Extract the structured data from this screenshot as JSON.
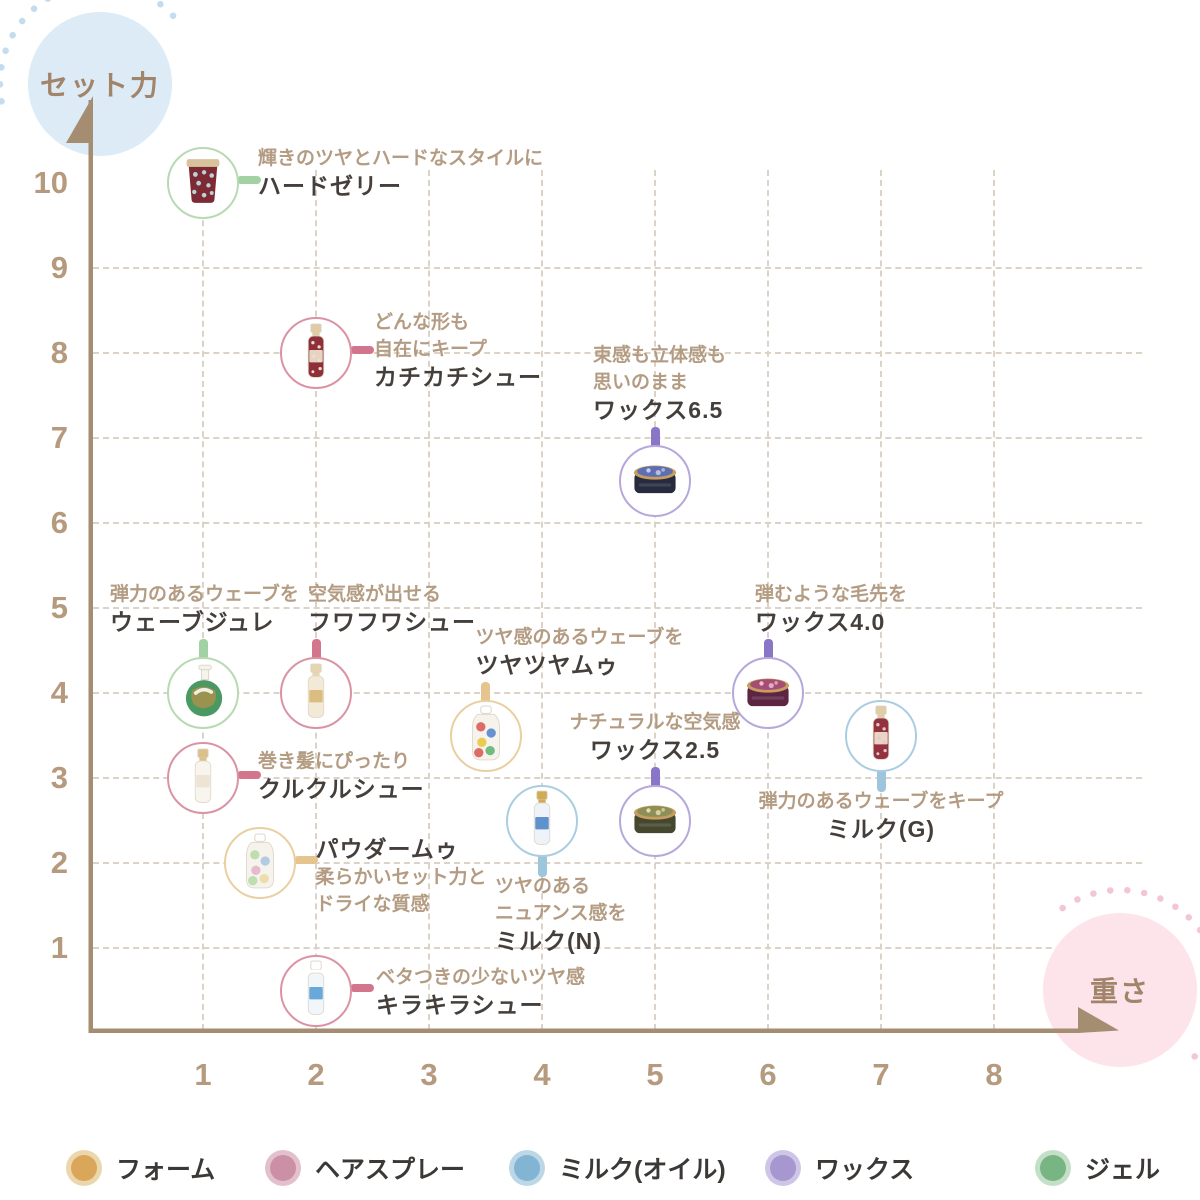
{
  "axes": {
    "y_axis_label": "セット力",
    "x_axis_label": "重さ"
  },
  "chart_data": {
    "type": "scatter",
    "title": "",
    "xlabel": "重さ",
    "ylabel": "セット力",
    "xlim": [
      0,
      8.7
    ],
    "ylim": [
      0,
      10.9
    ],
    "x_ticks": [
      "1",
      "2",
      "3",
      "4",
      "5",
      "6",
      "7",
      "8"
    ],
    "y_ticks": [
      "1",
      "2",
      "3",
      "4",
      "5",
      "6",
      "7",
      "8",
      "9",
      "10"
    ],
    "grid": true,
    "legend_position": "bottom",
    "series": [
      {
        "name": "フォーム",
        "key": "foam",
        "color": "#d9a65a",
        "ring": "#ecd7ad",
        "circle_stroke": "#e9d0a2",
        "connector": "#e5c48e",
        "points": [
          {
            "label": "ツヤツヤムゥ",
            "tagline": [
              "ツヤ感のあるウェーブを"
            ],
            "x": 3.5,
            "y": 3.5,
            "label_side": "above",
            "label_dx": -10,
            "label_align": "left",
            "icon": {
              "kind": "bottle2",
              "body": "#f6f3ec",
              "cap": "#ffffff",
              "patches": [
                "#d9534f",
                "#4f7fd0",
                "#eac435",
                "#58b06a",
                "#d9534f"
              ]
            }
          },
          {
            "label": "パウダームゥ",
            "tagline": [
              "柔らかいセット力と",
              "ドライな質感"
            ],
            "x": 1.5,
            "y": 2,
            "label_side": "right",
            "label_dx": 56,
            "label_dy": -28,
            "name_first": true,
            "icon": {
              "kind": "bottle2",
              "body": "#f6f3ec",
              "cap": "#ffffff",
              "patches": [
                "#b6d8a6",
                "#a6c3e2",
                "#e2b2c9",
                "#ead9a0",
                "#b6d8a6"
              ]
            }
          }
        ]
      },
      {
        "name": "ヘアスプレー",
        "key": "spray",
        "color": "#cb90a6",
        "ring": "#e2c0cc",
        "circle_stroke": "#db93a4",
        "connector": "#d4758e",
        "points": [
          {
            "label": "カチカチシュー",
            "tagline": [
              "どんな形も",
              "自在にキープ"
            ],
            "x": 2,
            "y": 8,
            "label_side": "right",
            "label_dx": 58,
            "label_dy": -44,
            "icon": {
              "kind": "bottle",
              "body": "#8f3039",
              "cap": "#dfcca5",
              "band": "#f1e6d2",
              "dots": "#e9e0ce"
            }
          },
          {
            "label": "フワフワシュー",
            "tagline": [
              "空気感が出せる"
            ],
            "x": 2,
            "y": 4,
            "label_side": "above",
            "label_dx": -8,
            "label_align": "left",
            "icon": {
              "kind": "bottle",
              "body": "#f2ead6",
              "cap": "#e6d6b0",
              "band": "#d9b878"
            }
          },
          {
            "label": "クルクルシュー",
            "tagline": [
              "巻き髪にぴったり"
            ],
            "x": 1,
            "y": 3,
            "label_side": "right",
            "label_dx": 55,
            "label_dy": -30,
            "icon": {
              "kind": "bottle",
              "body": "#f8f5ef",
              "cap": "#dcc089",
              "band": "#ece2cf"
            }
          },
          {
            "label": "キラキラシュー",
            "tagline": [
              "ベタつきの少ないツヤ感"
            ],
            "x": 2,
            "y": 0.5,
            "label_side": "right",
            "label_dx": 60,
            "label_dy": -27,
            "icon": {
              "kind": "bottle",
              "body": "#f1f6fb",
              "cap": "#ffffff",
              "band": "#5aa0d6"
            }
          }
        ]
      },
      {
        "name": "ミルク(オイル)",
        "key": "milk",
        "color": "#82b4d3",
        "ring": "#bcd8e7",
        "circle_stroke": "#abcde1",
        "connector": "#9dc5db",
        "points": [
          {
            "label": "ミルク(N)",
            "tagline": [
              "ツヤのある",
              "ニュアンス感を"
            ],
            "x": 4,
            "y": 2.5,
            "label_side": "below",
            "label_dx": -47,
            "label_align": "left",
            "icon": {
              "kind": "bottle",
              "body": "#edf3f8",
              "cap": "#d1ab52",
              "band": "#4f86c6"
            }
          },
          {
            "label": "ミルク(G)",
            "tagline": [
              "弾力のあるウェーブをキープ"
            ],
            "x": 7,
            "y": 3.5,
            "label_side": "below",
            "label_align": "center",
            "icon": {
              "kind": "bottle",
              "body": "#94323f",
              "cap": "#e0cda6",
              "band": "#f2e7d4",
              "dots": "#e3c9cf"
            }
          }
        ]
      },
      {
        "name": "ワックス",
        "key": "wax",
        "color": "#a697d0",
        "ring": "#cfc6e7",
        "circle_stroke": "#b6a8da",
        "connector": "#8a76c6",
        "points": [
          {
            "label": "ワックス6.5",
            "tagline": [
              "束感も立体感も",
              "思いのまま"
            ],
            "x": 5,
            "y": 6.5,
            "label_side": "above",
            "label_dx": -62,
            "label_align": "left",
            "icon": {
              "kind": "tin",
              "body": "#262b3d",
              "rim": "#c89e60",
              "lid": "#5d6fb0",
              "accent": "#c4cdf0"
            }
          },
          {
            "label": "ワックス4.0",
            "tagline": [
              "弾むような毛先を"
            ],
            "x": 6,
            "y": 4,
            "label_side": "above",
            "label_dx": -13,
            "label_align": "left",
            "icon": {
              "kind": "tin",
              "body": "#5e2542",
              "rim": "#c89e60",
              "lid": "#a34e72",
              "accent": "#ecbcd0"
            }
          },
          {
            "label": "ワックス2.5",
            "tagline": [
              "ナチュラルな空気感"
            ],
            "x": 5,
            "y": 2.5,
            "label_side": "above",
            "label_align": "center",
            "icon": {
              "kind": "tin",
              "body": "#45482f",
              "rim": "#c89e60",
              "lid": "#8c8f57",
              "accent": "#e6dcaa"
            }
          }
        ]
      },
      {
        "name": "ジェル",
        "key": "gel",
        "color": "#79b583",
        "ring": "#c3dfc8",
        "circle_stroke": "#b8dab3",
        "connector": "#a2d2a3",
        "points": [
          {
            "label": "ハードゼリー",
            "tagline": [
              "輝きのツヤとハードなスタイルに"
            ],
            "x": 1,
            "y": 10,
            "label_side": "right",
            "label_dx": 55,
            "label_dy": -38,
            "icon": {
              "kind": "jar",
              "body": "#7e2a34",
              "rim": "#d8c29c",
              "dots": "#b9d2d8"
            }
          },
          {
            "label": "ウェーブジュレ",
            "tagline": [
              "弾力のあるウェーブを"
            ],
            "x": 1,
            "y": 4,
            "label_side": "above",
            "label_dx": -93,
            "label_align": "left",
            "icon": {
              "kind": "pump",
              "body": "#4a9862",
              "accent": "#db9040",
              "pump": "#f6f3ec"
            }
          }
        ]
      }
    ]
  }
}
